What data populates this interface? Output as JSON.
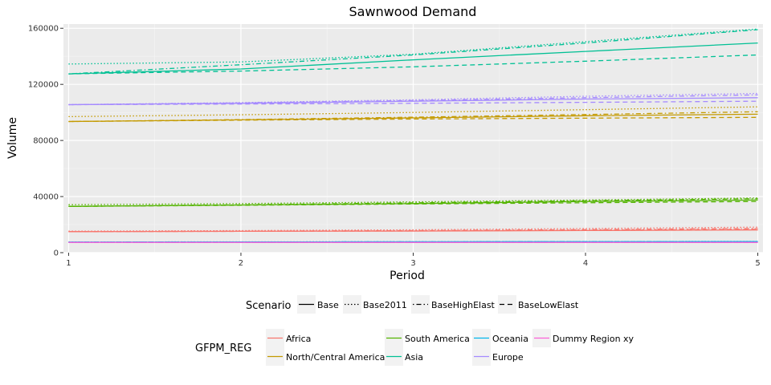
{
  "chart_data": {
    "type": "line",
    "title": "Sawnwood Demand",
    "xlabel": "Period",
    "ylabel": "Volume",
    "x": [
      1,
      2,
      3,
      4,
      5
    ],
    "xlim": [
      0.97,
      5.03
    ],
    "ylim": [
      0,
      163000
    ],
    "yticks": [
      0,
      40000,
      80000,
      120000,
      160000
    ],
    "ytick_labels": [
      "0",
      "40000",
      "80000",
      "120000",
      "160000"
    ],
    "xticks": [
      1,
      2,
      3,
      4,
      5
    ],
    "xtick_labels": [
      "1",
      "2",
      "3",
      "4",
      "5"
    ],
    "grid": true,
    "legend_position": "bottom",
    "scenario_legend": {
      "title": "Scenario",
      "items": [
        {
          "name": "Base",
          "dash": "solid"
        },
        {
          "name": "Base2011",
          "dash": "dotted"
        },
        {
          "name": "BaseHighElast",
          "dash": "dotdash"
        },
        {
          "name": "BaseLowElast",
          "dash": "dashed"
        }
      ]
    },
    "region_legend": {
      "title": "GFPM_REG",
      "items": [
        {
          "name": "Africa",
          "color": "#F8766D"
        },
        {
          "name": "North/Central America",
          "color": "#C49A00"
        },
        {
          "name": "South America",
          "color": "#53B400"
        },
        {
          "name": "Asia",
          "color": "#00C094"
        },
        {
          "name": "Oceania",
          "color": "#00B6EB"
        },
        {
          "name": "Europe",
          "color": "#A58AFF"
        },
        {
          "name": "Dummy Region xy",
          "color": "#FB61D7"
        }
      ]
    },
    "series": [
      {
        "region": "Africa",
        "scenario": "Base",
        "values": [
          15000,
          15200,
          15400,
          15800,
          16200
        ]
      },
      {
        "region": "Africa",
        "scenario": "Base2011",
        "values": [
          15300,
          15700,
          16300,
          17200,
          18200
        ]
      },
      {
        "region": "Africa",
        "scenario": "BaseHighElast",
        "values": [
          15000,
          15300,
          15700,
          16400,
          17200
        ]
      },
      {
        "region": "Africa",
        "scenario": "BaseLowElast",
        "values": [
          15000,
          15200,
          15500,
          16000,
          16700
        ]
      },
      {
        "region": "North/Central America",
        "scenario": "Base",
        "values": [
          93500,
          94700,
          96100,
          97600,
          98700
        ]
      },
      {
        "region": "North/Central America",
        "scenario": "Base2011",
        "values": [
          97000,
          98300,
          100000,
          102000,
          104000
        ]
      },
      {
        "region": "North/Central America",
        "scenario": "BaseHighElast",
        "values": [
          93500,
          94900,
          96600,
          98500,
          100500
        ]
      },
      {
        "region": "North/Central America",
        "scenario": "BaseLowElast",
        "values": [
          93500,
          94500,
          95300,
          95900,
          96500
        ]
      },
      {
        "region": "South America",
        "scenario": "Base",
        "values": [
          33000,
          34000,
          35000,
          36500,
          37500
        ]
      },
      {
        "region": "South America",
        "scenario": "Base2011",
        "values": [
          34200,
          35000,
          36200,
          37500,
          39000
        ]
      },
      {
        "region": "South America",
        "scenario": "BaseHighElast",
        "values": [
          33000,
          34100,
          35500,
          37000,
          38500
        ]
      },
      {
        "region": "South America",
        "scenario": "BaseLowElast",
        "values": [
          33000,
          33800,
          34700,
          35600,
          36500
        ]
      },
      {
        "region": "Asia",
        "scenario": "Base",
        "values": [
          127500,
          131000,
          137500,
          143500,
          149500
        ]
      },
      {
        "region": "Asia",
        "scenario": "Base2011",
        "values": [
          134500,
          136000,
          141500,
          150500,
          159500
        ]
      },
      {
        "region": "Asia",
        "scenario": "BaseHighElast",
        "values": [
          127500,
          134000,
          141000,
          149500,
          159000
        ]
      },
      {
        "region": "Asia",
        "scenario": "BaseLowElast",
        "values": [
          127500,
          129500,
          132500,
          136500,
          141000
        ]
      },
      {
        "region": "Oceania",
        "scenario": "Base",
        "values": [
          7500,
          7600,
          7700,
          7800,
          7900
        ]
      },
      {
        "region": "Oceania",
        "scenario": "Base2011",
        "values": [
          7600,
          7700,
          7800,
          7900,
          8000
        ]
      },
      {
        "region": "Oceania",
        "scenario": "BaseHighElast",
        "values": [
          7500,
          7600,
          7700,
          7800,
          7900
        ]
      },
      {
        "region": "Oceania",
        "scenario": "BaseLowElast",
        "values": [
          7500,
          7600,
          7700,
          7750,
          7800
        ]
      },
      {
        "region": "Europe",
        "scenario": "Base",
        "values": [
          105500,
          106500,
          108000,
          109500,
          110500
        ]
      },
      {
        "region": "Europe",
        "scenario": "Base2011",
        "values": [
          105500,
          107000,
          109000,
          111500,
          113500
        ]
      },
      {
        "region": "Europe",
        "scenario": "BaseHighElast",
        "values": [
          105500,
          106800,
          108500,
          110500,
          112500
        ]
      },
      {
        "region": "Europe",
        "scenario": "BaseLowElast",
        "values": [
          105500,
          106000,
          106500,
          107200,
          108000
        ]
      },
      {
        "region": "Dummy Region xy",
        "scenario": "Base",
        "values": [
          7300,
          7300,
          7300,
          7300,
          7300
        ]
      },
      {
        "region": "Dummy Region xy",
        "scenario": "Base2011",
        "values": [
          7300,
          7300,
          7300,
          7300,
          7300
        ]
      },
      {
        "region": "Dummy Region xy",
        "scenario": "BaseHighElast",
        "values": [
          7300,
          7300,
          7300,
          7300,
          7300
        ]
      },
      {
        "region": "Dummy Region xy",
        "scenario": "BaseLowElast",
        "values": [
          7300,
          7300,
          7300,
          7300,
          7300
        ]
      }
    ]
  }
}
